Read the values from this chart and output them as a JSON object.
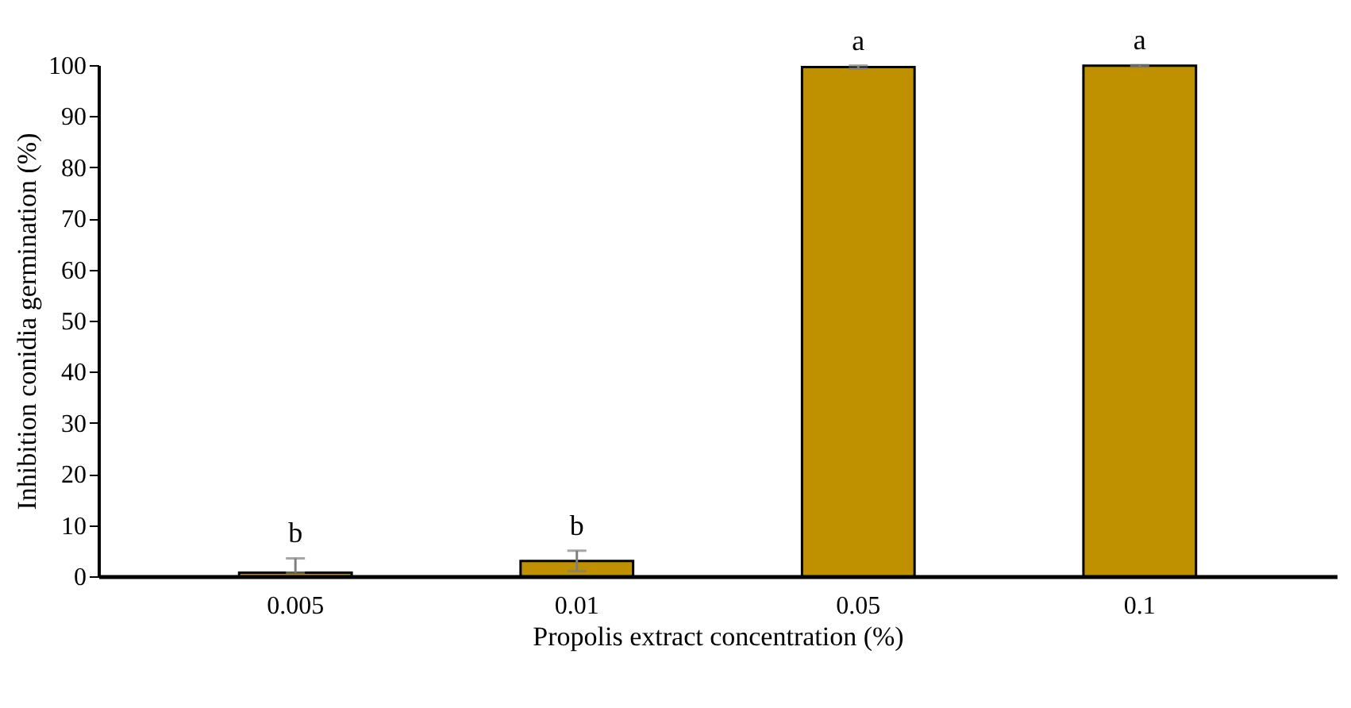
{
  "chart_data": {
    "type": "bar",
    "xlabel": "Propolis extract concentration (%)",
    "ylabel": "Inhibition conidia germination (%)",
    "categories": [
      "0.005",
      "0.01",
      "0.05",
      "0.1"
    ],
    "values": [
      0.7,
      3.0,
      99.6,
      99.9
    ],
    "color": "#bf9000",
    "errors": [
      [
        0.7,
        3.5
      ],
      [
        1,
        5
      ],
      [
        99.3,
        99.9
      ],
      [
        99.7,
        100
      ]
    ],
    "ylim": [
      0,
      100
    ],
    "yticks": [
      0,
      10,
      20,
      30,
      40,
      50,
      60,
      70,
      80,
      90,
      100
    ],
    "grid": false,
    "annotations": [
      "b",
      "b",
      "a",
      "a"
    ]
  }
}
